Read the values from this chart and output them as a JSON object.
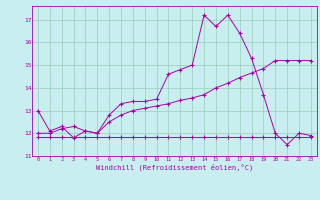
{
  "bg_color": "#c8eef0",
  "line_color": "#aa00aa",
  "grid_color": "#99ccbb",
  "xlabel": "Windchill (Refroidissement éolien,°C)",
  "x_ticks": [
    0,
    1,
    2,
    3,
    4,
    5,
    6,
    7,
    8,
    9,
    10,
    11,
    12,
    13,
    14,
    15,
    16,
    17,
    18,
    19,
    20,
    21,
    22,
    23
  ],
  "ylim": [
    11,
    17.6
  ],
  "xlim": [
    -0.5,
    23.5
  ],
  "yticks": [
    11,
    12,
    13,
    14,
    15,
    16,
    17
  ],
  "line1_x": [
    0,
    1,
    2,
    3,
    4,
    5,
    6,
    7,
    8,
    9,
    10,
    11,
    12,
    13,
    14,
    15,
    16,
    17,
    18,
    19,
    20,
    21,
    22,
    23
  ],
  "line1_y": [
    13.0,
    12.1,
    12.3,
    11.8,
    12.1,
    12.0,
    12.8,
    13.3,
    13.4,
    13.4,
    13.5,
    14.6,
    14.8,
    15.0,
    17.2,
    16.7,
    17.2,
    16.4,
    15.3,
    13.7,
    12.0,
    11.5,
    12.0,
    11.9
  ],
  "line2_x": [
    0,
    1,
    2,
    3,
    4,
    5,
    6,
    7,
    8,
    9,
    10,
    11,
    12,
    13,
    14,
    15,
    16,
    17,
    18,
    19,
    20,
    21,
    22,
    23
  ],
  "line2_y": [
    11.85,
    11.85,
    11.85,
    11.85,
    11.85,
    11.85,
    11.85,
    11.85,
    11.85,
    11.85,
    11.85,
    11.85,
    11.85,
    11.85,
    11.85,
    11.85,
    11.85,
    11.85,
    11.85,
    11.85,
    11.85,
    11.85,
    11.85,
    11.85
  ],
  "line3_x": [
    0,
    1,
    2,
    3,
    4,
    5,
    6,
    7,
    8,
    9,
    10,
    11,
    12,
    13,
    14,
    15,
    16,
    17,
    18,
    19,
    20,
    21,
    22,
    23
  ],
  "line3_y": [
    12.0,
    12.0,
    12.2,
    12.3,
    12.1,
    12.0,
    12.5,
    12.8,
    13.0,
    13.1,
    13.2,
    13.3,
    13.45,
    13.55,
    13.7,
    14.0,
    14.2,
    14.45,
    14.65,
    14.85,
    15.2,
    15.2,
    15.2,
    15.2
  ]
}
